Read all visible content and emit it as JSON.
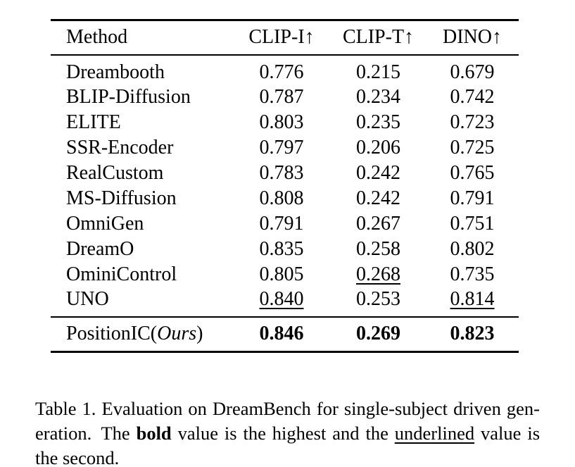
{
  "colors": {
    "background": "#ffffff",
    "text": "#000000",
    "rule": "#000000"
  },
  "table": {
    "headers": [
      "Method",
      "CLIP-I↑",
      "CLIP-T↑",
      "DINO↑"
    ],
    "rows": [
      [
        "Dreambooth",
        "0.776",
        "0.215",
        "0.679"
      ],
      [
        "BLIP-Diffusion",
        "0.787",
        "0.234",
        "0.742"
      ],
      [
        "ELITE",
        "0.803",
        "0.235",
        "0.723"
      ],
      [
        "SSR-Encoder",
        "0.797",
        "0.206",
        "0.725"
      ],
      [
        "RealCustom",
        "0.783",
        "0.242",
        "0.765"
      ],
      [
        "MS-Diffusion",
        "0.808",
        "0.242",
        "0.791"
      ],
      [
        "OmniGen",
        "0.791",
        "0.267",
        "0.751"
      ],
      [
        "DreamO",
        "0.835",
        "0.258",
        "0.802"
      ],
      [
        "OminiControl",
        "0.805",
        "0.268",
        "0.735"
      ],
      [
        "UNO",
        "0.840",
        "0.253",
        "0.814"
      ]
    ],
    "ours_row": {
      "method_prefix": "PositionIC(",
      "method_italic": "Ours",
      "method_suffix": ")",
      "values": [
        "0.846",
        "0.269",
        "0.823"
      ]
    }
  },
  "caption": {
    "line1": "Table 1. Evaluation on DreamBench for single-subject driven gen-",
    "line2_part1": "eration. The ",
    "line2_bold": "bold",
    "line2_part2": " value is the highest and the ",
    "line2_underlined": "underlined",
    "line2_part3": " value is",
    "line3": "the second."
  }
}
